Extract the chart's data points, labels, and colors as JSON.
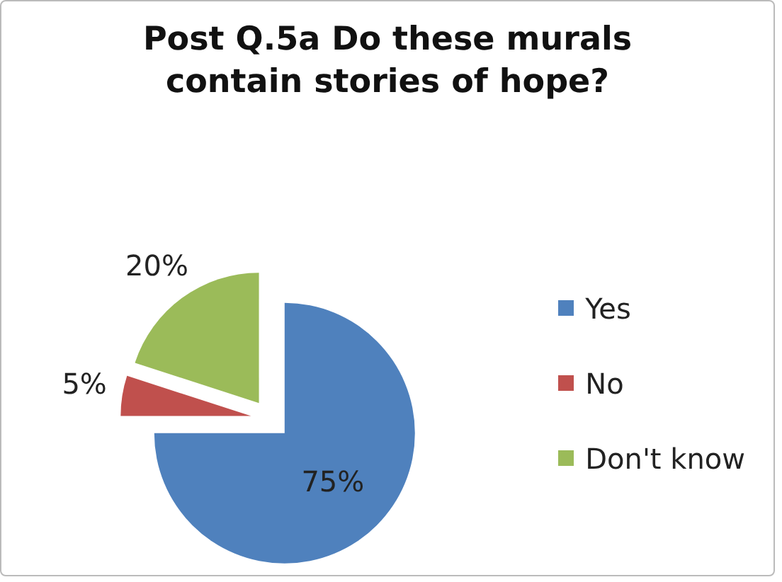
{
  "chart_data": {
    "type": "pie",
    "title": "Post Q.5a Do these murals contain stories of hope?",
    "categories": [
      "Yes",
      "No",
      "Don't know"
    ],
    "values": [
      75,
      5,
      20
    ],
    "colors": [
      "#4f81bd",
      "#c0504d",
      "#9bbb59"
    ],
    "value_labels": [
      "75%",
      "5%",
      "20%"
    ],
    "legend": "right"
  }
}
